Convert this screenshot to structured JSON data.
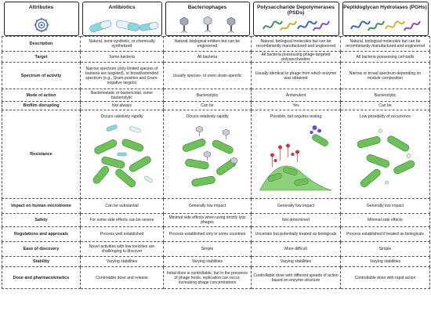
{
  "headers": {
    "attributes": "Attributes",
    "antibiotics": "Antibiotics",
    "bacteriophages": "Bacteriophages",
    "psds": "Polysaccharide Depolymerases (PSDs)",
    "pghs": "Peptidoglycan Hydrolases (PGHs)"
  },
  "rows": {
    "description": {
      "label": "Description",
      "antibiotics": "Natural, semi-synthetic, or chemically synthetized",
      "phages": "Natural, biological entities but can be engineered",
      "psds": "Natural, biological molecules but can be recombinantly manufactured and engineered",
      "pghs": "Natural, biological molecules but can be recombinantly manufactured and engineered"
    },
    "target": {
      "label": "Target",
      "antibiotics": "Some bacteria",
      "phages": "All bacteria",
      "psds": "All bacteria possessing phage-targeted polysaccharides",
      "pghs": "All bacteria possessing cell walls"
    },
    "spectrum": {
      "label": "Spectrum of activity",
      "antibiotics": "Narrow spectrum (only limited species of bacteria are targeted), or broad/extended spectrum (e.g., Gram-positive and Gram-negative targets)",
      "phages": "Usually species- or even strain-specific",
      "psds": "Usually identical to phage from which enzyme was obtained",
      "pghs": "Narrow or broad spectrum depending on module composition"
    },
    "mode": {
      "label": "Mode of action",
      "antibiotics": "Bacteriostatic or bactericidal, some bacteriolytic",
      "phages": "Bacteriolytic",
      "psds": "Antivirulent",
      "pghs": "Bacteriolytic"
    },
    "biofilm": {
      "label": "Biofilm disrupting",
      "antibiotics": "Not always",
      "phages": "Can be",
      "psds": "Yes",
      "pghs": "Can be"
    },
    "resistance": {
      "label": "Resistance",
      "antibiotics": "Occurs raletively rapidly",
      "phages": "Occurs relatively rapidly",
      "psds": "Possible, but requires testing",
      "pghs": "Low possibility of occurrence"
    },
    "microbiome": {
      "label": "Impact on human microbiome",
      "antibiotics": "Can be substantial",
      "phages": "Generally low impact",
      "psds": "Generally low impact",
      "pghs": "Generally low impact"
    },
    "safety": {
      "label": "Safety",
      "antibiotics": "For some side effects can be severe",
      "phages": "Minimal side effects when using strictly lytic phages",
      "psds": "Not determined",
      "pghs": "Minimal side effects"
    },
    "regulations": {
      "label": "Regulations and approvals",
      "antibiotics": "Process well established",
      "phages": "Process established only in some countries",
      "psds": "Uncertain but potentially treated as biologicals",
      "pghs": "Process established if treated as biologicals"
    },
    "discovery": {
      "label": "Ease of discovery",
      "antibiotics": "Novel activities with low toxicities are challenging to discover",
      "phages": "Simple",
      "psds": "More difficult",
      "pghs": "Simple"
    },
    "stability": {
      "label": "Stability",
      "antibiotics": "Varying stabilities",
      "phages": "Varying stabilities",
      "psds": "Varying stabilities",
      "pghs": "Varying stabilities"
    },
    "dose": {
      "label": "Dose and pharmacokinetics",
      "antibiotics": "Controlable dose and release",
      "phages": "Initial dose is controllable, but in the presence of phage hosts, replication can occur, increasing phage concentrations",
      "psds": "Controllable dose with different speeds of action based on enzyme structure",
      "pghs": "Controllable dose with rapid action"
    }
  },
  "icons": [
    "gear-target-icon",
    "capsule-pills-icon",
    "bacteriophage-icon",
    "protein-structure-icon",
    "protein-structure-icon"
  ],
  "colors": {
    "bacteria": "#6fbf5a",
    "bacteria_dark": "#3f8f3a",
    "capsule_blue": "#8fd3df",
    "capsule_white": "#e8f2f4",
    "accent_red": "#c93a3a",
    "accent_purple": "#6b4fc2"
  }
}
